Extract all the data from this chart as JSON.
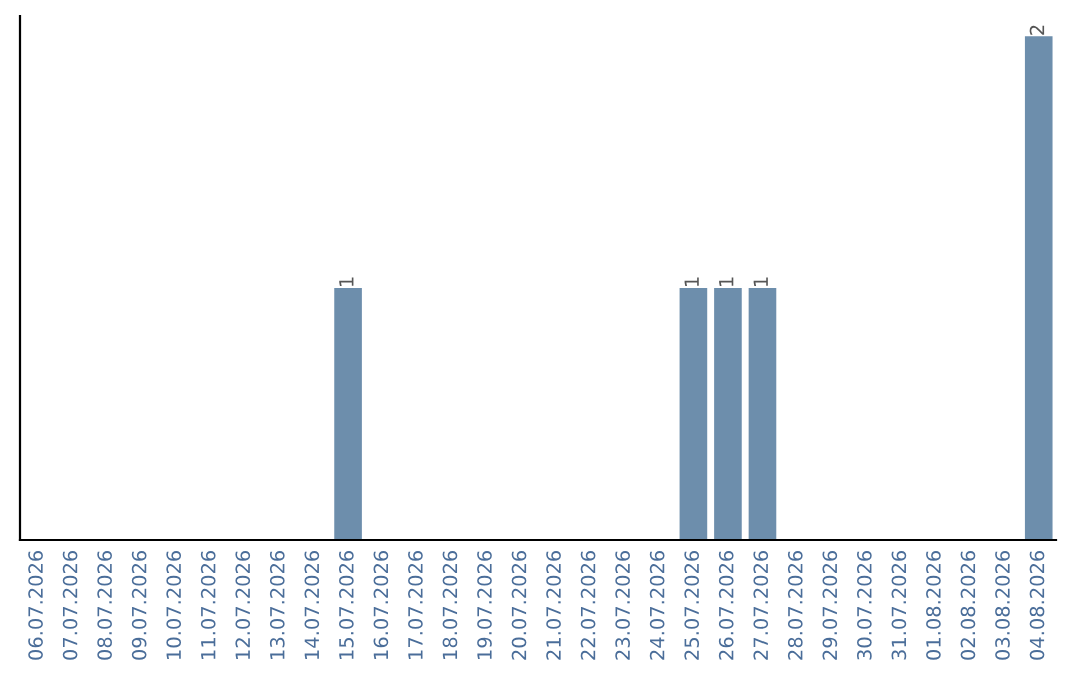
{
  "chart_data": {
    "type": "bar",
    "categories": [
      "06.07.2026",
      "07.07.2026",
      "08.07.2026",
      "09.07.2026",
      "10.07.2026",
      "11.07.2026",
      "12.07.2026",
      "13.07.2026",
      "14.07.2026",
      "15.07.2026",
      "16.07.2026",
      "17.07.2026",
      "18.07.2026",
      "19.07.2026",
      "20.07.2026",
      "21.07.2026",
      "22.07.2026",
      "23.07.2026",
      "24.07.2026",
      "25.07.2026",
      "26.07.2026",
      "27.07.2026",
      "28.07.2026",
      "29.07.2026",
      "30.07.2026",
      "31.07.2026",
      "01.08.2026",
      "02.08.2026",
      "03.08.2026",
      "04.08.2026"
    ],
    "values": [
      0,
      0,
      0,
      0,
      0,
      0,
      0,
      0,
      0,
      1,
      0,
      0,
      0,
      0,
      0,
      0,
      0,
      0,
      0,
      1,
      1,
      1,
      0,
      0,
      0,
      0,
      0,
      0,
      0,
      2
    ],
    "value_labels": [
      null,
      null,
      null,
      null,
      null,
      null,
      null,
      null,
      null,
      "1",
      null,
      null,
      null,
      null,
      null,
      null,
      null,
      null,
      null,
      "1",
      "1",
      "1",
      null,
      null,
      null,
      null,
      null,
      null,
      null,
      "2"
    ],
    "color": "#6d8eac",
    "tick_labels": "x",
    "grid": false,
    "legend": false
  }
}
